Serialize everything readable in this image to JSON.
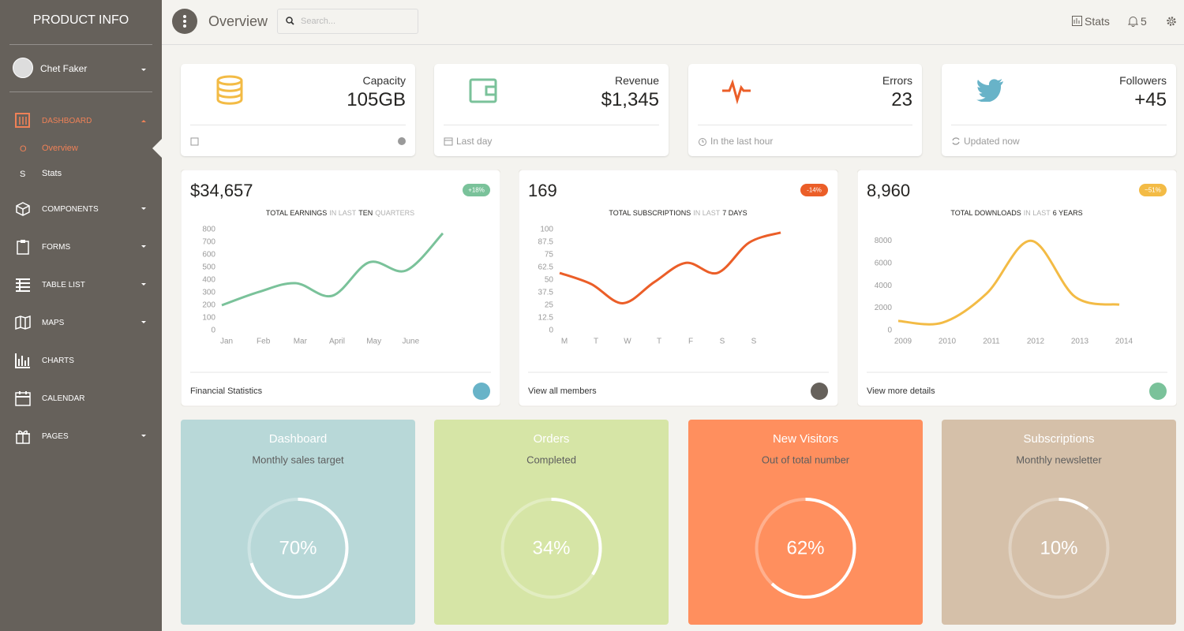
{
  "sidebar": {
    "brand": "PRODUCT INFO",
    "user": "Chet Faker",
    "nav": [
      {
        "label": "DASHBOARD",
        "children": [
          {
            "abbr": "O",
            "label": "Overview"
          },
          {
            "abbr": "S",
            "label": "Stats"
          }
        ]
      },
      {
        "label": "COMPONENTS"
      },
      {
        "label": "FORMS"
      },
      {
        "label": "TABLE LIST"
      },
      {
        "label": "MAPS"
      },
      {
        "label": "CHARTS"
      },
      {
        "label": "CALENDAR"
      },
      {
        "label": "PAGES"
      }
    ]
  },
  "topbar": {
    "title": "Overview",
    "search_placeholder": "Search...",
    "stats": "Stats",
    "notifications": "5"
  },
  "stat_cards": [
    {
      "label": "Capacity",
      "value": "105GB"
    },
    {
      "label": "Revenue",
      "value": "$1,345",
      "footer": "Last day"
    },
    {
      "label": "Errors",
      "value": "23",
      "footer": "In the last hour"
    },
    {
      "label": "Followers",
      "value": "+45",
      "footer": "Updated now"
    }
  ],
  "chart_cards": [
    {
      "value": "$34,657",
      "badge": "+18%",
      "footer": "Financial Statistics"
    },
    {
      "value": "169",
      "badge": "-14%",
      "footer": "View all members"
    },
    {
      "value": "8,960",
      "badge": "~51%",
      "footer": "View more details"
    }
  ],
  "chart_data": [
    {
      "type": "line",
      "title_parts": [
        "TOTAL EARNINGS",
        "IN LAST",
        "TEN",
        "QUARTERS"
      ],
      "categories": [
        "Jan",
        "Feb",
        "Mar",
        "April",
        "May",
        "June",
        null
      ],
      "series": [
        {
          "color": "#7ac29a",
          "values": [
            200,
            305,
            375,
            275,
            540,
            475,
            770
          ]
        }
      ],
      "ylim": [
        0,
        800
      ],
      "yticks": [
        0,
        100,
        200,
        300,
        400,
        500,
        600,
        700,
        800
      ]
    },
    {
      "type": "line",
      "title_parts": [
        "TOTAL SUBSCRIPTIONS",
        "IN LAST",
        "7 DAYS"
      ],
      "categories": [
        "M",
        "T",
        "W",
        "T",
        "F",
        "S",
        "S",
        null
      ],
      "series": [
        {
          "color": "#eb5e28",
          "values": [
            57,
            46,
            27,
            48,
            67,
            57,
            87,
            97
          ]
        }
      ],
      "ylim": [
        0,
        100
      ],
      "yticks": [
        0,
        12.5,
        25,
        37.5,
        50,
        62.5,
        75,
        87.5,
        100
      ]
    },
    {
      "type": "line",
      "title_parts": [
        "TOTAL DOWNLOADS",
        "IN LAST",
        "6 YEARS"
      ],
      "categories": [
        "2009",
        "2010",
        "2011",
        "2012",
        "2013",
        "2014"
      ],
      "series": [
        {
          "color": "#f3bb45",
          "values": [
            850,
            700,
            3300,
            8000,
            3000,
            2300
          ]
        }
      ],
      "ylim": [
        0,
        9000
      ],
      "yticks": [
        0,
        2000,
        4000,
        6000,
        8000
      ]
    }
  ],
  "progress_cards": [
    {
      "title": "Dashboard",
      "subtitle": "Monthly sales target",
      "value": 70,
      "value_label": "70%",
      "color": "#b8d8d8"
    },
    {
      "title": "Orders",
      "subtitle": "Completed",
      "value": 34,
      "value_label": "34%",
      "color": "#d6e5a6"
    },
    {
      "title": "New Visitors",
      "subtitle": "Out of total number",
      "value": 62,
      "value_label": "62%",
      "color": "#ff8f5e"
    },
    {
      "title": "Subscriptions",
      "subtitle": "Monthly newsletter",
      "value": 10,
      "value_label": "10%",
      "color": "#d5c0a9"
    }
  ]
}
